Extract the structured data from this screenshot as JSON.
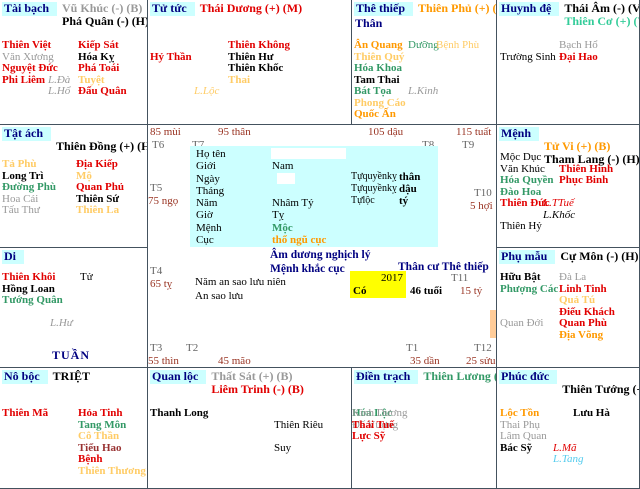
{
  "palette": {
    "k": "#000000",
    "r": "#e10000",
    "gy": "#999999",
    "o": "#ff9900",
    "lo": "#ffcc66",
    "g": "#339966",
    "t": "#33cc99",
    "n": "#000080",
    "lb": "#55ccee",
    "dr": "#993333"
  },
  "palaces": {
    "taibach": {
      "name": "Tài bạch",
      "main": [
        {
          "t": "Vũ Khúc (-) (B)",
          "c": "gy"
        },
        {
          "t": "Phá Quân (-) (H)",
          "c": "k"
        }
      ],
      "left": [
        {
          "t": "Thiên Việt",
          "c": "r"
        },
        {
          "t": "Văn Xương",
          "c": "gy",
          "p": 1
        },
        {
          "t": "Nguyệt Đức",
          "c": "r"
        },
        {
          "t": "Phi Liêm",
          "c": "r"
        }
      ],
      "mid": [
        "",
        "",
        "",
        {
          "t": "L.Đà",
          "c": "gy",
          "p": 1,
          "i": 1
        },
        {
          "t": "L.Hổ",
          "c": "gy",
          "p": 1,
          "i": 1
        }
      ],
      "right": [
        {
          "t": "Kiếp Sát",
          "c": "r"
        },
        {
          "t": "Hóa Kỵ",
          "c": "k"
        },
        {
          "t": "Phá Toái",
          "c": "r"
        },
        {
          "t": "Tuyệt",
          "c": "lo"
        },
        {
          "t": "Đẩu Quân",
          "c": "r"
        }
      ]
    },
    "tutuc": {
      "name": "Tử tức",
      "main": [
        {
          "t": "Thái Dương (+) (M)",
          "c": "r"
        }
      ],
      "left": [
        "",
        {
          "t": "Hỷ Thần",
          "c": "r"
        }
      ],
      "mid": [
        "",
        "",
        "",
        "",
        {
          "t": "L.Lộc",
          "c": "lo",
          "p": 1,
          "i": 1
        }
      ],
      "right": [
        {
          "t": "Thiên Không",
          "c": "r"
        },
        {
          "t": "Thiên Hư",
          "c": "k"
        },
        {
          "t": "Thiên Khốc",
          "c": "k"
        },
        {
          "t": "Thai",
          "c": "lo"
        }
      ]
    },
    "thethiep": {
      "name": "Thê thiếp",
      "sub": "Thân",
      "main": [
        {
          "t": "Thiên Phủ (+) (M)",
          "c": "o"
        }
      ],
      "left": [
        {
          "t": "Ân Quang",
          "c": "o"
        },
        {
          "t": "Thiên Quý",
          "c": "lo"
        },
        {
          "t": "Hóa Khoa",
          "c": "g"
        },
        {
          "t": "Tam Thai",
          "c": "k"
        },
        {
          "t": "Bát Tọa",
          "c": "g"
        },
        {
          "t": "Phong Cáo",
          "c": "lo"
        },
        {
          "t": "Quốc Ấn",
          "c": "o"
        }
      ],
      "mid": [
        {
          "t": "Dưỡng",
          "c": "g",
          "p": 1
        },
        "",
        "",
        "",
        {
          "t": "L.Kình",
          "c": "gy",
          "p": 1,
          "i": 1
        }
      ],
      "right": [
        {
          "t": "Bệnh Phù",
          "c": "lo",
          "p": 1
        }
      ]
    },
    "huynhde": {
      "name": "Huynh đệ",
      "main": [
        {
          "t": "Thái Âm (-) (V)",
          "c": "k"
        },
        {
          "t": "Thiên Cơ (+) (V)",
          "c": "t"
        }
      ],
      "left": [
        "",
        {
          "t": "Trường Sinh",
          "c": "k",
          "p": 1
        }
      ],
      "right": [
        {
          "t": "Bạch Hổ",
          "c": "gy",
          "p": 1
        },
        {
          "t": "Đại Hao",
          "c": "r"
        }
      ]
    },
    "tatach": {
      "name": "Tật ách",
      "main": [
        "",
        {
          "t": "Thiên Đồng (+) (H)",
          "c": "k"
        }
      ],
      "left": [
        {
          "t": "Tả Phù",
          "c": "lo"
        },
        {
          "t": "Long Trì",
          "c": "k"
        },
        {
          "t": "Đường Phù",
          "c": "g"
        },
        {
          "t": "Hoa Cái",
          "c": "gy",
          "p": 1
        },
        {
          "t": "Tấu Thư",
          "c": "gy",
          "p": 1
        }
      ],
      "right": [
        {
          "t": "Địa Kiếp",
          "c": "r"
        },
        {
          "t": "Mộ",
          "c": "lo"
        },
        {
          "t": "Quan Phủ",
          "c": "r"
        },
        {
          "t": "Thiên Sứ",
          "c": "k"
        },
        {
          "t": "Thiên La",
          "c": "lo"
        }
      ]
    },
    "menh": {
      "name": "Mệnh",
      "main": [
        "",
        {
          "t": "Tử Vi (+) (B)",
          "c": "o"
        },
        {
          "t": "Tham Lang (-) (H)",
          "c": "k"
        }
      ],
      "left": [
        {
          "t": "Mộc Dục",
          "c": "k",
          "p": 1
        },
        {
          "t": "Văn Khúc",
          "c": "k",
          "p": 1
        },
        {
          "t": "Hóa Quyền",
          "c": "g"
        },
        {
          "t": "Đào Hoa",
          "c": "g"
        },
        {
          "t": "Thiên Đức",
          "c": "r"
        },
        "",
        {
          "t": "Thiên Hỷ",
          "c": "k",
          "p": 1
        }
      ],
      "mid": [
        "",
        "",
        "",
        "",
        {
          "t": "L.TTuế",
          "c": "r",
          "p": 1,
          "i": 1
        },
        {
          "t": "L.Khốc",
          "c": "k",
          "p": 1,
          "i": 1
        }
      ],
      "right": [
        "",
        {
          "t": "Thiên Hình",
          "c": "r"
        },
        {
          "t": "Phục Binh",
          "c": "r"
        }
      ]
    },
    "di": {
      "name": "Di",
      "bottom": "TUẦN",
      "main": [],
      "left": [
        {
          "t": "Thiên Khôi",
          "c": "r"
        },
        {
          "t": "Hồng Loan",
          "c": "k"
        },
        {
          "t": "Tướng Quân",
          "c": "g"
        }
      ],
      "mid": [
        "",
        "",
        "",
        "",
        {
          "t": "L.Hư",
          "c": "gy",
          "p": 1,
          "i": 1
        }
      ],
      "right": [
        {
          "t": "Tử",
          "c": "k",
          "p": 1
        }
      ]
    },
    "phumau": {
      "name": "Phụ mẫu",
      "main": [
        {
          "t": "Cự Môn (-) (H)",
          "c": "k"
        }
      ],
      "left": [
        {
          "t": "Hữu Bật",
          "c": "k"
        },
        {
          "t": "Phượng Các",
          "c": "g"
        },
        "",
        "",
        {
          "t": "Quan Đới",
          "c": "gy",
          "p": 1
        }
      ],
      "right": [
        {
          "t": "Đà La",
          "c": "gy",
          "p": 1
        },
        {
          "t": "Linh Tinh",
          "c": "r"
        },
        {
          "t": "Quả Tú",
          "c": "lo"
        },
        {
          "t": "Điếu Khách",
          "c": "r"
        },
        {
          "t": "Quan Phù",
          "c": "r"
        },
        {
          "t": "Địa Võng",
          "c": "o"
        }
      ]
    },
    "noboc": {
      "name": "Nô bộc",
      "main": [
        {
          "t": "TRIỆT",
          "c": "k"
        }
      ],
      "left": [
        {
          "t": "Thiên Mã",
          "c": "r"
        }
      ],
      "right": [
        {
          "t": "Hỏa Tinh",
          "c": "r"
        },
        {
          "t": "Tang Môn",
          "c": "g"
        },
        {
          "t": "Cô Thần",
          "c": "lo"
        },
        {
          "t": "Tiểu Hao",
          "c": "dr"
        },
        {
          "t": "Bệnh",
          "c": "r"
        },
        {
          "t": "Thiên Thương",
          "c": "lo"
        }
      ]
    },
    "quanloc": {
      "name": "Quan lộc",
      "main": [
        {
          "t": "Thất Sát (+) (B)",
          "c": "gy"
        },
        {
          "t": "Liêm Trinh (-) (B)",
          "c": "r"
        }
      ],
      "left": [
        {
          "t": "Thanh Long",
          "c": "k"
        }
      ],
      "right": [
        "",
        {
          "t": "Thiên Riêu",
          "c": "k",
          "p": 1
        },
        "",
        {
          "t": "Suy",
          "c": "k",
          "p": 1
        }
      ]
    },
    "dientrach": {
      "name": "Điền trạch",
      "main": [
        {
          "t": "Thiên Lương (-) (V)",
          "c": "g"
        }
      ],
      "left": [
        {
          "t": "Hóa Lộc",
          "c": "g"
        },
        {
          "t": "Đế Vượng",
          "c": "gy",
          "p": 1
        },
        {
          "t": "Lực Sỹ",
          "c": "r"
        }
      ],
      "right": [
        {
          "t": "Kình Dương",
          "c": "gy",
          "p": 1
        },
        {
          "t": "Thái Tuế",
          "c": "r"
        }
      ]
    },
    "phucduc": {
      "name": "Phúc đức",
      "main": [
        "",
        {
          "t": "Thiên Tướng (+) (Đ)",
          "c": "k"
        }
      ],
      "left": [
        {
          "t": "Lộc Tồn",
          "c": "o"
        },
        {
          "t": "Thai Phụ",
          "c": "gy",
          "p": 1
        },
        {
          "t": "Lâm Quan",
          "c": "gy",
          "p": 1
        },
        {
          "t": "Bác Sỹ",
          "c": "k"
        }
      ],
      "mid": [
        "",
        "",
        "",
        {
          "t": "L.Mã",
          "c": "r",
          "p": 1,
          "i": 1
        },
        {
          "t": "L.Tang",
          "c": "lb",
          "p": 1,
          "i": 1
        }
      ],
      "right": [
        {
          "t": "Lưu Hà",
          "c": "k"
        }
      ]
    }
  },
  "center": {
    "form": {
      "rows": [
        {
          "l": "Họ tên",
          "box": 1,
          "k": "name"
        },
        {
          "l": "Giới",
          "v": "Nam"
        },
        {
          "l": "Ngày",
          "box": 1,
          "k": "day"
        },
        {
          "l": "Tháng"
        },
        {
          "l": "Năm",
          "v": "Nhâm Tý"
        },
        {
          "l": "Giờ",
          "v": "Tỵ"
        },
        {
          "l": "Mệnh",
          "v": "Mộc",
          "vc": "g",
          "vb": 1
        },
        {
          "l": "Cục",
          "v": "thổ ngũ cục",
          "vc": "o",
          "vb": 1
        }
      ]
    },
    "tu_rows": [
      {
        "l": "Tựquyềnkỵ",
        "v": "thân",
        "vb": 1
      },
      {
        "l": "Tựquyềnkỵ",
        "v": "dậu",
        "vb": 1
      },
      {
        "l": "Tựlộc",
        "v": "tý",
        "vb": 1
      }
    ],
    "notes": {
      "amduong": "Âm dương nghịch lý",
      "menhkhac": "Mệnh khắc cục",
      "thancu": "Thân cư Thê thiếp",
      "namansao": "Năm an sao lưu niên",
      "ansao": "An sao lưu",
      "year": "2017",
      "co": "Có",
      "age": "46 tuổi"
    },
    "markers": {
      "m85": "85 mùi",
      "m95": "95 thân",
      "m105": "105 dậu",
      "m115": "115 tuất",
      "t6": "T6",
      "t7": "T7",
      "t8": "T8",
      "t9": "T9",
      "t5": "T5",
      "m75": "75 ngọ",
      "t10": "T10",
      "m5": "5 hợi",
      "t4": "T4",
      "m65": "65 tỵ",
      "t11": "T11",
      "m15": "15 tý",
      "t3": "T3",
      "m55": "55 thìn",
      "t2": "T2",
      "m45": "45 mão",
      "t1": "T1",
      "m35": "35 dần",
      "t12": "T12",
      "m25": "25 sửu"
    }
  }
}
